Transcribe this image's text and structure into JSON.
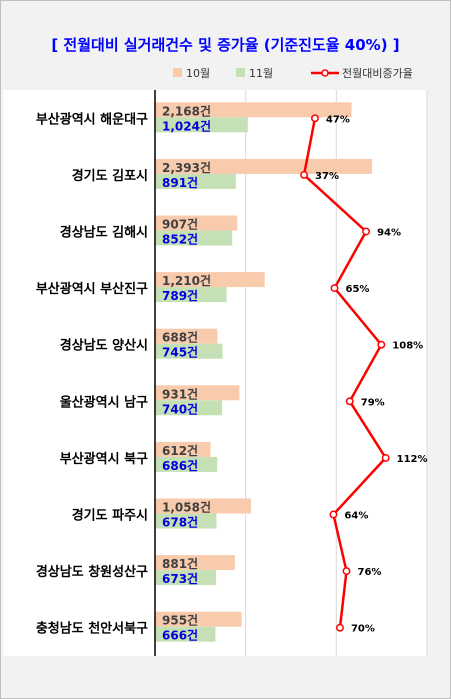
{
  "chart_data": {
    "type": "bar",
    "title": "[ 전월대비 실거래건수 및 증가율 (기준진도율 40%) ]",
    "categories": [
      "부산광역시 해운대구",
      "경기도 김포시",
      "경상남도 김해시",
      "부산광역시 부산진구",
      "경상남도 양산시",
      "울산광역시 남구",
      "부산광역시 북구",
      "경기도 파주시",
      "경상남도 창원성산구",
      "충청남도 천안서북구"
    ],
    "unit": "건",
    "series": [
      {
        "name": "10월",
        "values": [
          2168,
          2393,
          907,
          1210,
          688,
          931,
          612,
          1058,
          881,
          955
        ],
        "labels": [
          "2,168",
          "2,393",
          "907",
          "1,210",
          "688",
          "931",
          "612",
          "1,058",
          "881",
          "955"
        ]
      },
      {
        "name": "11월",
        "values": [
          1024,
          891,
          852,
          789,
          745,
          740,
          686,
          678,
          673,
          666
        ],
        "labels": [
          "1,024",
          "891",
          "852",
          "789",
          "745",
          "740",
          "686",
          "678",
          "673",
          "666"
        ]
      },
      {
        "name": "전월대비증가율",
        "type": "line",
        "values": [
          47,
          37,
          94,
          65,
          108,
          79,
          112,
          64,
          76,
          70
        ],
        "labels": [
          "47%",
          "37%",
          "94%",
          "65%",
          "108%",
          "79%",
          "112%",
          "64%",
          "76%",
          "70%"
        ]
      }
    ],
    "xlim": [
      0,
      3000
    ],
    "line_xlim": [
      -100,
      150
    ],
    "colors": {
      "oct": "#f8cbad",
      "nov": "#c5e0b4",
      "line": "#ff0000",
      "title": "#0000ff",
      "nov_label": "#0000e0"
    },
    "legend_position": "top",
    "grid": true
  }
}
